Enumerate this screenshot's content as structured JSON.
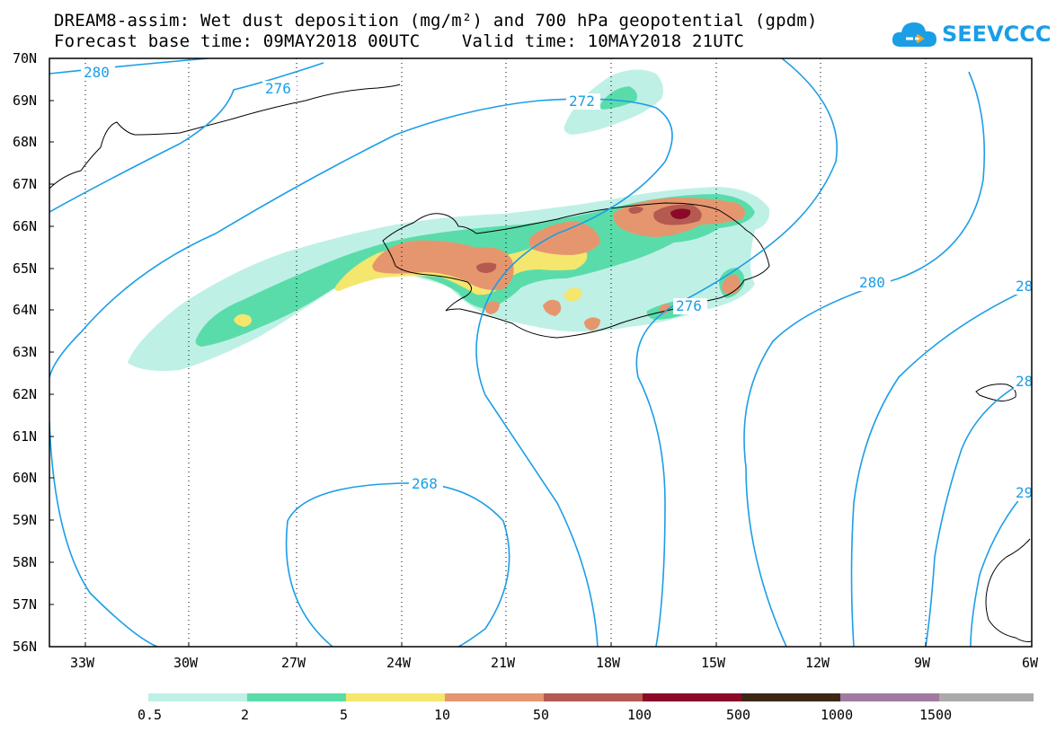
{
  "header": {
    "title_line1": "DREAM8-assim: Wet dust deposition (mg/m²) and 700 hPa geopotential (gpdm)",
    "title_line2": "Forecast base time: 09MAY2018 00UTC    Valid time: 10MAY2018 21UTC"
  },
  "logo": {
    "text": "SEEVCCC",
    "icon": "cloud-icon"
  },
  "map": {
    "lat_labels": [
      "70N",
      "69N",
      "68N",
      "67N",
      "66N",
      "65N",
      "64N",
      "63N",
      "62N",
      "61N",
      "60N",
      "59N",
      "58N",
      "57N",
      "56N"
    ],
    "lon_labels": [
      "33W",
      "30W",
      "27W",
      "24W",
      "21W",
      "18W",
      "15W",
      "12W",
      "9W",
      "6W"
    ],
    "contour_labels": [
      "280",
      "276",
      "272",
      "276",
      "280",
      "28",
      "28",
      "268",
      "29"
    ],
    "contour_color": "#1c9ee6"
  },
  "colorbar": {
    "tick_labels": [
      "0.5",
      "2",
      "5",
      "10",
      "50",
      "100",
      "500",
      "1000",
      "1500"
    ],
    "colors": [
      "#bff0e6",
      "#5adcaa",
      "#f5e66e",
      "#e6966e",
      "#b45a50",
      "#8c0a28",
      "#3c2814",
      "#a07aa0",
      "#aaaaaa"
    ]
  }
}
